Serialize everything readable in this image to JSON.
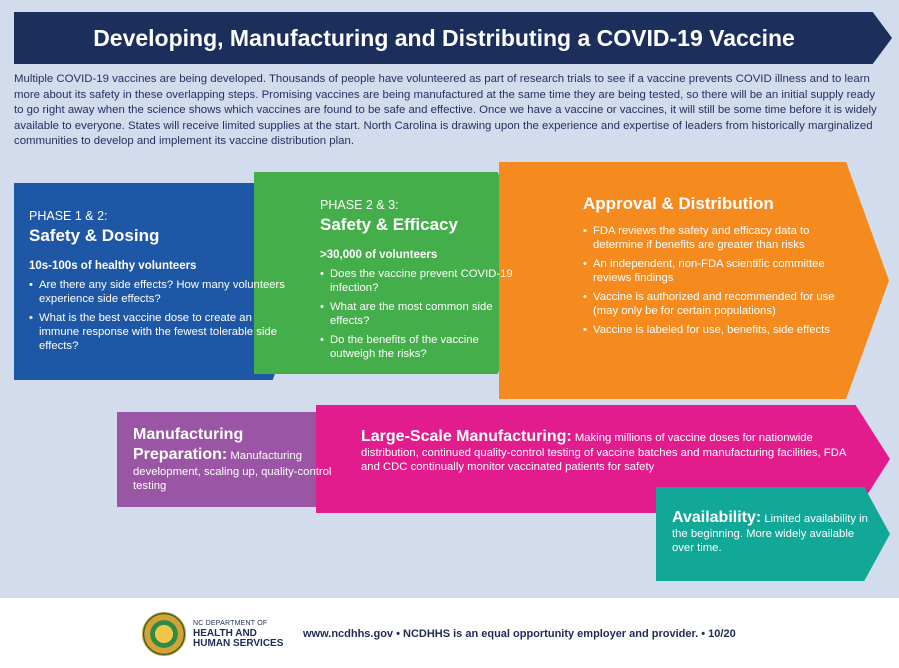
{
  "header": {
    "title": "Developing, Manufacturing and Distributing a COVID-19 Vaccine"
  },
  "intro": "Multiple COVID-19 vaccines are being developed. Thousands of people have volunteered as part of research trials to see if a vaccine prevents COVID illness and to learn more about its safety in these overlapping steps. Promising vaccines are being manufactured at the same time they are being tested, so there will be an initial supply ready to go right away when the science shows which vaccines are found to be safe and effective. Once we have a vaccine or vaccines, it will still be some time before it is widely available to everyone. States will receive limited supplies at the start. North Carolina is drawing upon the experience and expertise of leaders from historically marginalized communities to develop and implement its vaccine distribution plan.",
  "phase1": {
    "kicker": "PHASE 1 & 2:",
    "title": "Safety & Dosing",
    "subtitle": "10s-100s of healthy volunteers",
    "bullets": [
      "Are there any side effects? How many volunteers experience side effects?",
      "What is the best vaccine dose to create an immune response with the fewest tolerable side effects?"
    ]
  },
  "phase2": {
    "kicker": "PHASE 2 & 3:",
    "title": "Safety & Efficacy",
    "subtitle": ">30,000 of volunteers",
    "bullets": [
      "Does the vaccine prevent COVID-19 infection?",
      "What are the most common side effects?",
      "Do the benefits of the vaccine outweigh the risks?"
    ]
  },
  "approval": {
    "title": "Approval & Distribution",
    "bullets": [
      "FDA reviews the safety and efficacy data  to determine if benefits are greater than risks",
      "An independent, non-FDA scientific committee reviews findings",
      "Vaccine is authorized and recommended for use (may only be for certain populations)",
      "Vaccine is labeled for use, benefits, side effects"
    ]
  },
  "prep": {
    "title_line1": "Manufacturing",
    "title_line2": "Preparation:",
    "body": " Manufacturing development, scaling up, quality-control testing"
  },
  "manufacturing": {
    "title": "Large-Scale Manufacturing:",
    "body": " Making millions of vaccine doses for nationwide distribution, continued quality-control testing of vaccine batches and manufacturing facilities, FDA and CDC continually monitor vaccinated patients for safety"
  },
  "availability": {
    "title": "Availability:",
    "body": " Limited availability in the beginning. More widely available over time."
  },
  "colors": {
    "navy": "#1c2e5c",
    "blue": "#1e57a6",
    "green": "#44ae4a",
    "orange": "#f58a1f",
    "purple": "#9a55a4",
    "pink": "#e31c8d",
    "teal": "#12a898",
    "background": "#d3dced"
  },
  "footer": {
    "seal_icon": "nc-seal-icon",
    "logo_line1": "NC DEPARTMENT OF",
    "logo_line2": "HEALTH AND",
    "logo_line3": "HUMAN SERVICES",
    "text": "www.ncdhhs.gov  •  NCDHHS is an equal opportunity employer and provider.  •  10/20"
  }
}
